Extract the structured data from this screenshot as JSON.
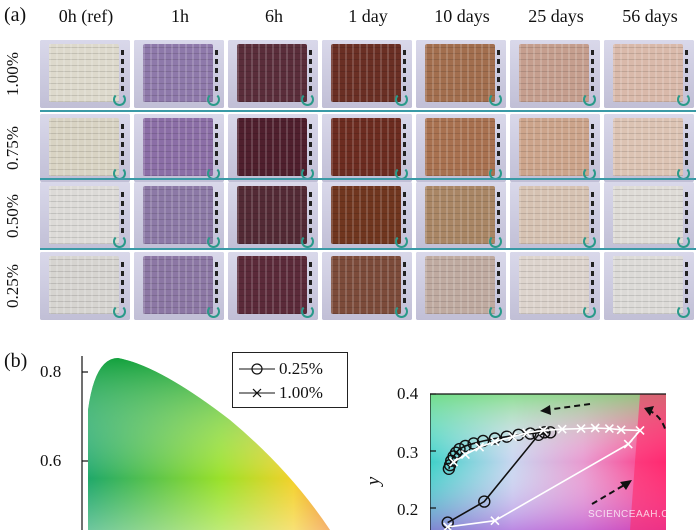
{
  "panel_a": {
    "label": "(a)",
    "columns": [
      "0h (ref)",
      "1h",
      "6h",
      "1 day",
      "10 days",
      "25 days",
      "56 days"
    ],
    "rows": [
      "1.00%",
      "0.75%",
      "0.50%",
      "0.25%"
    ],
    "sample_colors": [
      [
        "#ddd9cc",
        "#8e79aa",
        "#5a2d3a",
        "#6a2f24",
        "#a26e4e",
        "#c59e8e",
        "#d9b9aa"
      ],
      [
        "#d8d3c3",
        "#8b6ea6",
        "#4f1f2d",
        "#6c2c20",
        "#a87150",
        "#cca48b",
        "#dcc3b3"
      ],
      [
        "#dcdad7",
        "#8c79a6",
        "#532a35",
        "#70361f",
        "#a98665",
        "#d6c2b2",
        "#dedbd6"
      ],
      [
        "#d6d4d0",
        "#8c77a4",
        "#5b2a39",
        "#7c4b3a",
        "#bfaaa0",
        "#dcd3cc",
        "#dcdad7"
      ]
    ]
  },
  "panel_b": {
    "label": "(b)",
    "legend": [
      {
        "label": "0.25%",
        "marker": "circle"
      },
      {
        "label": "1.00%",
        "marker": "x"
      }
    ],
    "left_plot": {
      "y_ticks": [
        "0.8",
        "0.6"
      ]
    },
    "right_plot": {
      "ylabel": "y",
      "y_ticks": [
        "0.4",
        "0.3",
        "0.2"
      ]
    }
  },
  "chart_data": [
    {
      "type": "scatter",
      "y_ticks": [
        0.8,
        0.6
      ],
      "ylim": [
        0.5,
        0.85
      ]
    },
    {
      "type": "line",
      "ylabel": "y",
      "y_ticks": [
        0.4,
        0.3,
        0.2
      ],
      "ylim": [
        0.18,
        0.4
      ],
      "xlim": [
        0.3,
        0.5
      ],
      "series": [
        {
          "name": "0.25%",
          "marker": "circle",
          "color": "#111111",
          "x": [
            0.315,
            0.346,
            0.392,
            0.402,
            0.397,
            0.385,
            0.375,
            0.365,
            0.355,
            0.345,
            0.337,
            0.33,
            0.325,
            0.322,
            0.32,
            0.318,
            0.317,
            0.316
          ],
          "y": [
            0.192,
            0.226,
            0.334,
            0.338,
            0.338,
            0.336,
            0.334,
            0.331,
            0.328,
            0.324,
            0.32,
            0.316,
            0.311,
            0.305,
            0.299,
            0.292,
            0.285,
            0.279
          ]
        },
        {
          "name": "1.00%",
          "marker": "x",
          "color": "#ffffff",
          "x": [
            0.315,
            0.355,
            0.468,
            0.478,
            0.462,
            0.452,
            0.44,
            0.428,
            0.412,
            0.396,
            0.382,
            0.37,
            0.355,
            0.342,
            0.33,
            0.32
          ],
          "y": [
            0.185,
            0.195,
            0.319,
            0.341,
            0.342,
            0.344,
            0.345,
            0.344,
            0.343,
            0.341,
            0.337,
            0.331,
            0.323,
            0.314,
            0.302,
            0.29
          ]
        }
      ]
    }
  ],
  "watermark": "SCIENCEAAH.COM"
}
